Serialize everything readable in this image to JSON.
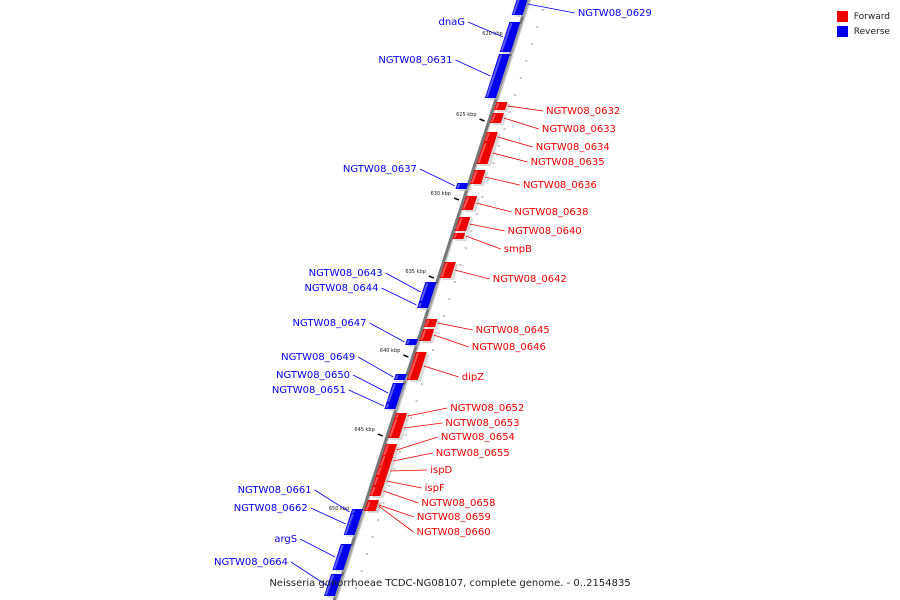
{
  "caption": "Neisseria gonorrhoeae TCDC-NG08107, complete genome. - 0..2154835",
  "legend": [
    {
      "label": "Forward",
      "color": "#ee0000"
    },
    {
      "label": "Reverse",
      "color": "#0000ee"
    }
  ],
  "ticks": [
    "620 kbp",
    "625 kbp",
    "630 kbp",
    "635 kbp",
    "640 kbp",
    "645 kbp",
    "650 kbp"
  ],
  "genes": [
    {
      "label": "NGTW08_0629",
      "strand": "reverse",
      "side": "right"
    },
    {
      "label": "dnaG",
      "strand": "reverse",
      "side": "left"
    },
    {
      "label": "NGTW08_0631",
      "strand": "reverse",
      "side": "left"
    },
    {
      "label": "NGTW08_0632",
      "strand": "forward",
      "side": "right"
    },
    {
      "label": "NGTW08_0633",
      "strand": "forward",
      "side": "right"
    },
    {
      "label": "NGTW08_0634",
      "strand": "forward",
      "side": "right"
    },
    {
      "label": "NGTW08_0635",
      "strand": "forward",
      "side": "right"
    },
    {
      "label": "NGTW08_0636",
      "strand": "forward",
      "side": "right"
    },
    {
      "label": "NGTW08_0637",
      "strand": "reverse",
      "side": "left"
    },
    {
      "label": "NGTW08_0638",
      "strand": "forward",
      "side": "right"
    },
    {
      "label": "NGTW08_0640",
      "strand": "forward",
      "side": "right"
    },
    {
      "label": "smpB",
      "strand": "forward",
      "side": "right"
    },
    {
      "label": "NGTW08_0642",
      "strand": "forward",
      "side": "right"
    },
    {
      "label": "NGTW08_0643",
      "strand": "reverse",
      "side": "left"
    },
    {
      "label": "NGTW08_0644",
      "strand": "reverse",
      "side": "left"
    },
    {
      "label": "NGTW08_0645",
      "strand": "forward",
      "side": "right"
    },
    {
      "label": "NGTW08_0646",
      "strand": "forward",
      "side": "right"
    },
    {
      "label": "NGTW08_0647",
      "strand": "reverse",
      "side": "left"
    },
    {
      "label": "NGTW08_0649",
      "strand": "reverse",
      "side": "left"
    },
    {
      "label": "dipZ",
      "strand": "forward",
      "side": "right"
    },
    {
      "label": "NGTW08_0650",
      "strand": "reverse",
      "side": "left"
    },
    {
      "label": "NGTW08_0651",
      "strand": "reverse",
      "side": "left"
    },
    {
      "label": "NGTW08_0652",
      "strand": "forward",
      "side": "right"
    },
    {
      "label": "NGTW08_0653",
      "strand": "forward",
      "side": "right"
    },
    {
      "label": "NGTW08_0654",
      "strand": "forward",
      "side": "right"
    },
    {
      "label": "NGTW08_0655",
      "strand": "forward",
      "side": "right"
    },
    {
      "label": "ispD",
      "strand": "forward",
      "side": "right"
    },
    {
      "label": "ispF",
      "strand": "forward",
      "side": "right"
    },
    {
      "label": "NGTW08_0658",
      "strand": "forward",
      "side": "right"
    },
    {
      "label": "NGTW08_0659",
      "strand": "forward",
      "side": "right"
    },
    {
      "label": "NGTW08_0660",
      "strand": "forward",
      "side": "right"
    },
    {
      "label": "NGTW08_0661",
      "strand": "reverse",
      "side": "left"
    },
    {
      "label": "NGTW08_0662",
      "strand": "reverse",
      "side": "left"
    },
    {
      "label": "argS",
      "strand": "reverse",
      "side": "left"
    },
    {
      "label": "NGTW08_0664",
      "strand": "reverse",
      "side": "left"
    }
  ]
}
